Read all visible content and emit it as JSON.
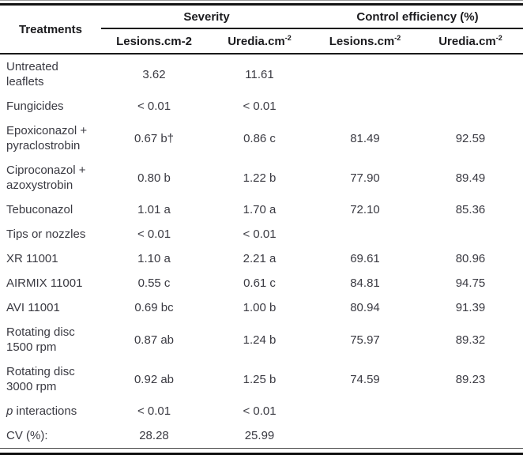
{
  "table": {
    "col1_header": "Treatments",
    "groups": [
      {
        "label": "Severity"
      },
      {
        "label": "Control efficiency (%)"
      }
    ],
    "subheaders": [
      {
        "base": "Lesions.cm-2",
        "sup": ""
      },
      {
        "base": "Uredia.cm",
        "sup": "-2"
      },
      {
        "base": "Lesions.cm",
        "sup": "-2"
      },
      {
        "base": "Uredia.cm",
        "sup": "-2"
      }
    ],
    "rows": [
      {
        "treatment": "Untreated leaflets",
        "cells": [
          "3.62",
          "11.61",
          "",
          ""
        ]
      },
      {
        "treatment": "Fungicides",
        "cells": [
          "< 0.01",
          "< 0.01",
          "",
          ""
        ]
      },
      {
        "treatment": "Epoxiconazol + pyraclostrobin",
        "cells": [
          "0.67 b†",
          "0.86 c",
          "81.49",
          "92.59"
        ]
      },
      {
        "treatment": "Ciproconazol + azoxystrobin",
        "cells": [
          "0.80 b",
          "1.22 b",
          "77.90",
          "89.49"
        ]
      },
      {
        "treatment": "Tebuconazol",
        "cells": [
          "1.01 a",
          "1.70 a",
          "72.10",
          "85.36"
        ]
      },
      {
        "treatment": "Tips or nozzles",
        "cells": [
          "< 0.01",
          "< 0.01",
          "",
          ""
        ]
      },
      {
        "treatment": "XR 11001",
        "cells": [
          "1.10 a",
          "2.21 a",
          "69.61",
          "80.96"
        ]
      },
      {
        "treatment": "AIRMIX 11001",
        "cells": [
          "0.55 c",
          "0.61 c",
          "84.81",
          "94.75"
        ]
      },
      {
        "treatment": "AVI 11001",
        "cells": [
          "0.69 bc",
          "1.00 b",
          "80.94",
          "91.39"
        ]
      },
      {
        "treatment": "Rotating disc 1500 rpm",
        "cells": [
          "0.87 ab",
          "1.24 b",
          "75.97",
          "89.32"
        ]
      },
      {
        "treatment": "Rotating disc 3000 rpm",
        "cells": [
          "0.92 ab",
          "1.25 b",
          "74.59",
          "89.23"
        ]
      },
      {
        "treatment": "interactions",
        "italic_prefix": "p",
        "cells": [
          "< 0.01",
          "< 0.01",
          "",
          ""
        ]
      },
      {
        "treatment": "CV (%):",
        "cells": [
          "28.28",
          "25.99",
          "",
          ""
        ]
      }
    ]
  }
}
